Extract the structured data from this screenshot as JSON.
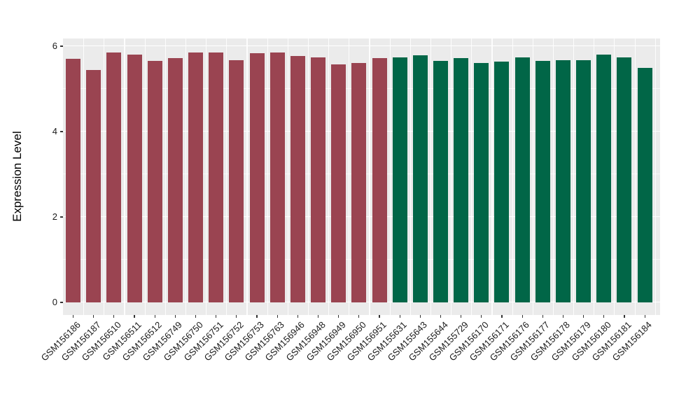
{
  "chart_data": {
    "type": "bar",
    "title": "",
    "xlabel": "",
    "ylabel": "Expression Level",
    "ylim": [
      0,
      6.18
    ],
    "ytick_values": [
      0,
      2,
      4,
      6
    ],
    "minor_tick_values": [
      1,
      3,
      5
    ],
    "grid": "on",
    "legend": "none",
    "panel_bg": "#EBEBEB",
    "gridline_color": "#FFFFFF",
    "axis_text_color": "#1A1A1A",
    "groups": [
      {
        "name": "group-1-maroon",
        "color": "#9A4451"
      },
      {
        "name": "group-2-green",
        "color": "#016647"
      }
    ],
    "bars": [
      {
        "label": "GSM156186",
        "value": 5.7,
        "group": 0
      },
      {
        "label": "GSM156187",
        "value": 5.45,
        "group": 0
      },
      {
        "label": "GSM156510",
        "value": 5.85,
        "group": 0
      },
      {
        "label": "GSM156511",
        "value": 5.81,
        "group": 0
      },
      {
        "label": "GSM156512",
        "value": 5.66,
        "group": 0
      },
      {
        "label": "GSM156749",
        "value": 5.72,
        "group": 0
      },
      {
        "label": "GSM156750",
        "value": 5.85,
        "group": 0
      },
      {
        "label": "GSM156751",
        "value": 5.85,
        "group": 0
      },
      {
        "label": "GSM156752",
        "value": 5.68,
        "group": 0
      },
      {
        "label": "GSM156753",
        "value": 5.83,
        "group": 0
      },
      {
        "label": "GSM156763",
        "value": 5.85,
        "group": 0
      },
      {
        "label": "GSM156946",
        "value": 5.77,
        "group": 0
      },
      {
        "label": "GSM156948",
        "value": 5.73,
        "group": 0
      },
      {
        "label": "GSM156949",
        "value": 5.58,
        "group": 0
      },
      {
        "label": "GSM156950",
        "value": 5.61,
        "group": 0
      },
      {
        "label": "GSM156951",
        "value": 5.72,
        "group": 0
      },
      {
        "label": "GSM155631",
        "value": 5.73,
        "group": 1
      },
      {
        "label": "GSM155643",
        "value": 5.79,
        "group": 1
      },
      {
        "label": "GSM155644",
        "value": 5.66,
        "group": 1
      },
      {
        "label": "GSM155729",
        "value": 5.72,
        "group": 1
      },
      {
        "label": "GSM156170",
        "value": 5.61,
        "group": 1
      },
      {
        "label": "GSM156171",
        "value": 5.64,
        "group": 1
      },
      {
        "label": "GSM156176",
        "value": 5.73,
        "group": 1
      },
      {
        "label": "GSM156177",
        "value": 5.66,
        "group": 1
      },
      {
        "label": "GSM156178",
        "value": 5.68,
        "group": 1
      },
      {
        "label": "GSM156179",
        "value": 5.68,
        "group": 1
      },
      {
        "label": "GSM156180",
        "value": 5.8,
        "group": 1
      },
      {
        "label": "GSM156181",
        "value": 5.74,
        "group": 1
      },
      {
        "label": "GSM156184",
        "value": 5.5,
        "group": 1
      }
    ]
  }
}
